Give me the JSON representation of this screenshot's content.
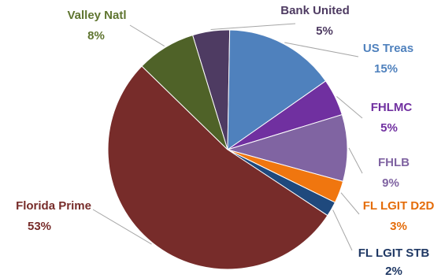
{
  "chart_data": {
    "type": "pie",
    "title": "",
    "legend": "none",
    "slices": [
      {
        "label": "Bank United",
        "value": 5,
        "value_label": "5%",
        "color": "#4e3b62",
        "label_color": "#4e3b62"
      },
      {
        "label": "US Treas",
        "value": 15,
        "value_label": "15%",
        "color": "#4f81bd",
        "label_color": "#4f81bd"
      },
      {
        "label": "FHLMC",
        "value": 5,
        "value_label": "5%",
        "color": "#7030a0",
        "label_color": "#7030a0"
      },
      {
        "label": "FHLB",
        "value": 9,
        "value_label": "9%",
        "color": "#8064a2",
        "label_color": "#8064a2"
      },
      {
        "label": "FL LGIT D2D",
        "value": 3,
        "value_label": "3%",
        "color": "#f0760f",
        "label_color": "#e46c0a"
      },
      {
        "label": "FL LGIT STB",
        "value": 2,
        "value_label": "2%",
        "color": "#1f497d",
        "label_color": "#1f3864"
      },
      {
        "label": "Florida Prime",
        "value": 53,
        "value_label": "53%",
        "color": "#772c2a",
        "label_color": "#772c2a"
      },
      {
        "label": "Valley Natl",
        "value": 8,
        "value_label": "8%",
        "color": "#4f6228",
        "label_color": "#5f7530"
      }
    ]
  }
}
